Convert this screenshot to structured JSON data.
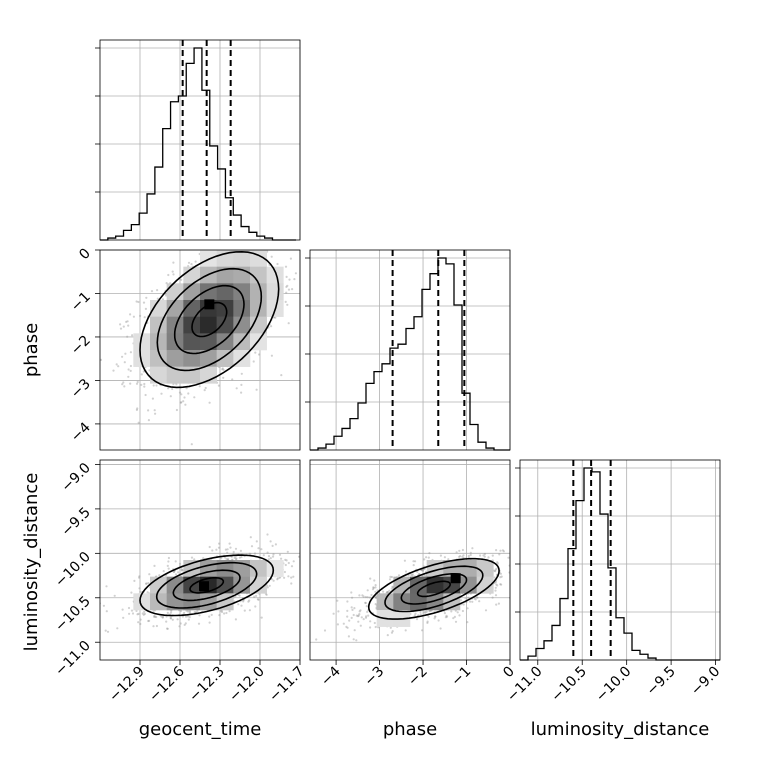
{
  "chart_data": {
    "type": "corner",
    "parameters": [
      "geocent_time",
      "phase",
      "luminosity_distance"
    ],
    "grid": true,
    "axes": {
      "geocent_time": {
        "range": [
          -13.2,
          -11.7
        ],
        "ticks": [
          -12.9,
          -12.6,
          -12.3,
          -12.0,
          -11.7
        ],
        "tick_labels": [
          "−12.9",
          "−12.6",
          "−12.3",
          "−12.0",
          "−11.7"
        ]
      },
      "phase": {
        "range": [
          -4.6,
          0
        ],
        "ticks": [
          -4,
          -3,
          -2,
          -1,
          0
        ],
        "tick_labels": [
          "−4",
          "−3",
          "−2",
          "−1",
          "0"
        ]
      },
      "luminosity_distance": {
        "range": [
          -11.2,
          -8.95
        ],
        "ticks": [
          -11.0,
          -10.5,
          -10.0,
          -9.5,
          -9.0
        ],
        "tick_labels": [
          "−11.0",
          "−10.5",
          "−10.0",
          "−9.5",
          "−9.0"
        ]
      }
    },
    "histograms": [
      {
        "parameter": "geocent_time",
        "bin_edges_start": -13.2,
        "bin_width": 0.0588,
        "counts": [
          0,
          1,
          2,
          5,
          8,
          14,
          24,
          38,
          58,
          72,
          75,
          92,
          100,
          78,
          49,
          37,
          22,
          13,
          7,
          4,
          2,
          1,
          0,
          0,
          0
        ],
        "quantiles": [
          -12.58,
          -12.4,
          -12.22
        ]
      },
      {
        "parameter": "phase",
        "bin_edges_start": -4.6,
        "bin_width": 0.184,
        "counts": [
          0,
          1,
          3,
          7,
          11,
          16,
          24,
          34,
          40,
          44,
          52,
          54,
          62,
          68,
          82,
          90,
          98,
          95,
          74,
          29,
          13,
          4,
          1,
          0,
          0
        ],
        "quantiles": [
          -2.7,
          -1.65,
          -1.05
        ]
      },
      {
        "parameter": "luminosity_distance",
        "bin_edges_start": -11.2,
        "bin_width": 0.09,
        "counts": [
          0,
          2,
          6,
          10,
          18,
          32,
          58,
          83,
          100,
          98,
          76,
          48,
          22,
          14,
          5,
          3,
          1,
          0,
          0,
          0,
          0,
          0,
          0,
          0,
          0
        ],
        "quantiles": [
          -10.6,
          -10.4,
          -10.18
        ]
      }
    ],
    "scatter_2d": [
      {
        "x": "geocent_time",
        "y": "phase",
        "mean": [
          -12.38,
          -1.6
        ],
        "sd": [
          0.26,
          0.78
        ],
        "corr": 0.45,
        "mode": [
          -12.38,
          -1.25
        ]
      },
      {
        "x": "geocent_time",
        "y": "luminosity_distance",
        "mean": [
          -12.4,
          -10.36
        ],
        "sd": [
          0.25,
          0.17
        ],
        "corr": 0.5,
        "mode": [
          -12.42,
          -10.37
        ]
      },
      {
        "x": "phase",
        "y": "luminosity_distance",
        "mean": [
          -1.75,
          -10.4
        ],
        "sd": [
          0.75,
          0.17
        ],
        "corr": 0.6,
        "mode": [
          -1.25,
          -10.28
        ]
      }
    ]
  }
}
